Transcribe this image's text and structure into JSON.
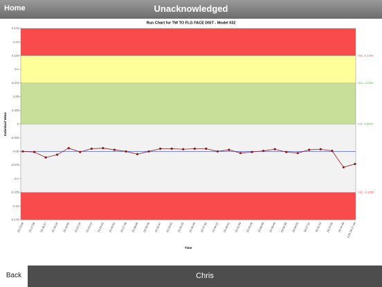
{
  "header": {
    "home": "Home",
    "title": "Unacknowledged"
  },
  "chart_data": {
    "type": "line",
    "title": "Run Chart for TW TO FLG FACE DIST - Model 032",
    "y_label": "Individual Value",
    "x_label": "Time",
    "categories": [
      "15:13:56",
      "15:17:28",
      "15:18:17",
      "15:19:24",
      "15:19:55",
      "15:21:24",
      "15:23:13",
      "15:24:22",
      "15:25:51",
      "15:27:36",
      "15:28:09",
      "15:30:16",
      "15:31:47",
      "15:33:01",
      "15:34:25",
      "15:35:45",
      "15:37:42",
      "15:39:12",
      "15:40:41",
      "15:41:59",
      "15:43:26",
      "15:58:09",
      "15:59:49",
      "16:02:05",
      "16:04:23",
      "16:07:11",
      "16:11:14",
      "16:13:19",
      "16:14:48",
      "1/10 16:17:34"
    ],
    "series": [
      {
        "name": "Individual Value",
        "color": "#8b1a1a",
        "values": [
          -0.05,
          -0.051,
          -0.061,
          -0.056,
          -0.044,
          -0.051,
          -0.045,
          -0.044,
          -0.047,
          -0.05,
          -0.055,
          -0.05,
          -0.045,
          -0.045,
          -0.046,
          -0.045,
          -0.045,
          -0.05,
          -0.047,
          -0.053,
          -0.051,
          -0.049,
          -0.046,
          -0.051,
          -0.053,
          -0.047,
          -0.046,
          -0.049,
          -0.079,
          -0.073
        ]
      }
    ],
    "limits": [
      {
        "value": 0.125,
        "label": "USL: 0.1250",
        "color": "#e23b3b"
      },
      {
        "value": 0.075,
        "label": "UCL: 0.0750",
        "color": "#4a9a3a"
      },
      {
        "value": 0,
        "label": "LCL: 0.0000",
        "color": "#4a9a3a"
      },
      {
        "value": -0.125,
        "label": "LSL: -0.1250",
        "color": "#e23b3b"
      }
    ],
    "band_colors": [
      "#f94b4b",
      "#ffff9a",
      "#c8df9a",
      "#f2f2f2",
      "#f94b4b"
    ],
    "center_line": -0.05,
    "center_color": "#3344cc",
    "ylim": [
      -0.175,
      0.175
    ],
    "yticks": [
      0.175,
      0.15,
      0.125,
      0.1,
      0.075,
      0.05,
      0.025,
      0,
      -0.025,
      -0.05,
      -0.075,
      -0.1,
      -0.125,
      -0.15,
      -0.175
    ]
  },
  "footer": {
    "back": "Back",
    "user": "Chris"
  }
}
